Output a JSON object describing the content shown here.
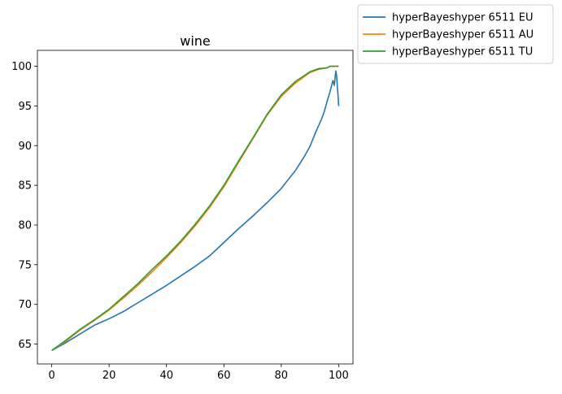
{
  "chart_data": {
    "type": "line",
    "title": "wine",
    "xlabel": "",
    "ylabel": "",
    "xlim": [
      -5,
      105
    ],
    "ylim": [
      62.5,
      102
    ],
    "x_ticks": [
      0,
      20,
      40,
      60,
      80,
      100
    ],
    "y_ticks": [
      65,
      70,
      75,
      80,
      85,
      90,
      95,
      100
    ],
    "grid": false,
    "legend_position": "outside-top-right",
    "series": [
      {
        "name": " hyperBayeshyper 6511 EU",
        "color": "#1f77b4",
        "x": [
          0,
          5,
          10,
          15,
          20,
          25,
          30,
          35,
          40,
          45,
          50,
          55,
          60,
          65,
          70,
          75,
          80,
          85,
          88,
          90,
          92,
          94,
          95,
          96,
          97,
          98,
          98.5,
          99,
          99.3,
          99.6,
          99.8,
          100
        ],
        "y": [
          64.2,
          65.2,
          66.3,
          67.4,
          68.2,
          69.1,
          70.2,
          71.3,
          72.4,
          73.6,
          74.8,
          76.1,
          77.8,
          79.5,
          81.1,
          82.8,
          84.6,
          86.9,
          88.6,
          89.9,
          91.7,
          93.3,
          94.3,
          95.6,
          96.8,
          98.2,
          97.6,
          99.4,
          98.8,
          97.2,
          96.3,
          95.0
        ]
      },
      {
        "name": " hyperBayeshyper 6511 AU",
        "color": "#ff7f0e",
        "x": [
          0,
          5,
          10,
          15,
          20,
          25,
          30,
          35,
          40,
          45,
          50,
          55,
          60,
          65,
          70,
          75,
          80,
          85,
          90,
          93,
          96,
          97,
          98,
          100
        ],
        "y": [
          64.2,
          65.4,
          66.8,
          68.0,
          69.3,
          70.8,
          72.4,
          74.1,
          75.9,
          77.8,
          79.9,
          82.2,
          84.8,
          87.8,
          90.8,
          93.8,
          96.2,
          97.9,
          99.2,
          99.6,
          99.8,
          100,
          100,
          100
        ]
      },
      {
        "name": " hyperBayeshyper 6511 TU",
        "color": "#2ca02c",
        "x": [
          0,
          5,
          10,
          15,
          20,
          25,
          30,
          35,
          40,
          45,
          50,
          55,
          60,
          65,
          70,
          75,
          80,
          85,
          90,
          93,
          96,
          97,
          98,
          100
        ],
        "y": [
          64.2,
          65.5,
          66.9,
          68.1,
          69.4,
          71.0,
          72.6,
          74.4,
          76.1,
          78.0,
          80.1,
          82.4,
          85.0,
          88.0,
          90.9,
          93.9,
          96.4,
          98.1,
          99.3,
          99.7,
          99.8,
          100,
          100,
          100
        ]
      }
    ]
  }
}
